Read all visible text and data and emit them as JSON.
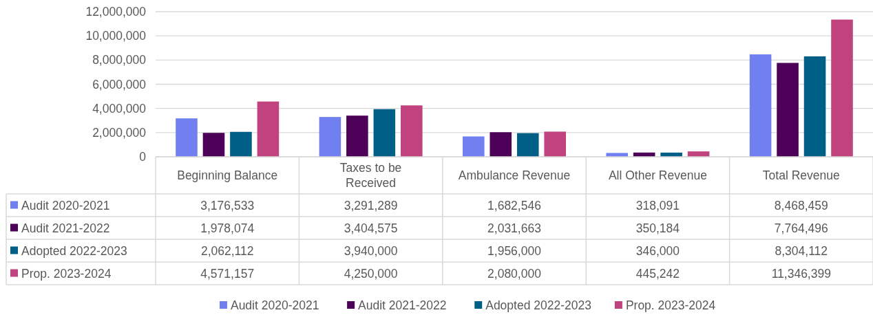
{
  "chart_data": {
    "type": "bar",
    "categories": [
      "Beginning Balance",
      "Taxes to be Received",
      "Ambulance Revenue",
      "All Other Revenue",
      "Total Revenue"
    ],
    "series": [
      {
        "name": "Audit 2020-2021",
        "color": "#7080f0",
        "values": [
          3176533,
          3291289,
          1682546,
          318091,
          8468459
        ],
        "value_labels": [
          "3,176,533",
          "3,291,289",
          "1,682,546",
          "318,091",
          "8,468,459"
        ]
      },
      {
        "name": "Audit 2021-2022",
        "color": "#4d0057",
        "values": [
          1978074,
          3404575,
          2031663,
          350184,
          7764496
        ],
        "value_labels": [
          "1,978,074",
          "3,404,575",
          "2,031,663",
          "350,184",
          "7,764,496"
        ]
      },
      {
        "name": "Adopted 2022-2023",
        "color": "#005f86",
        "values": [
          2062112,
          3940000,
          1956000,
          346000,
          8304112
        ],
        "value_labels": [
          "2,062,112",
          "3,940,000",
          "1,956,000",
          "346,000",
          "8,304,112"
        ]
      },
      {
        "name": "Prop. 2023-2024",
        "color": "#c0427e",
        "values": [
          4571157,
          4250000,
          2080000,
          445242,
          11346399
        ],
        "value_labels": [
          "4,571,157",
          "4,250,000",
          "2,080,000",
          "445,242",
          "11,346,399"
        ]
      }
    ],
    "ylim": [
      0,
      12000000
    ],
    "yticks": [
      0,
      {
        "value": 2000000,
        "label": "2,000,000"
      },
      {
        "value": 4000000,
        "label": "4,000,000"
      },
      {
        "value": 6000000,
        "label": "6,000,000"
      },
      {
        "value": 8000000,
        "label": "8,000,000"
      },
      {
        "value": 10000000,
        "label": "10,000,000"
      },
      {
        "value": 12000000,
        "label": "12,000,000"
      }
    ],
    "grid": "y",
    "legend": "bottom"
  }
}
